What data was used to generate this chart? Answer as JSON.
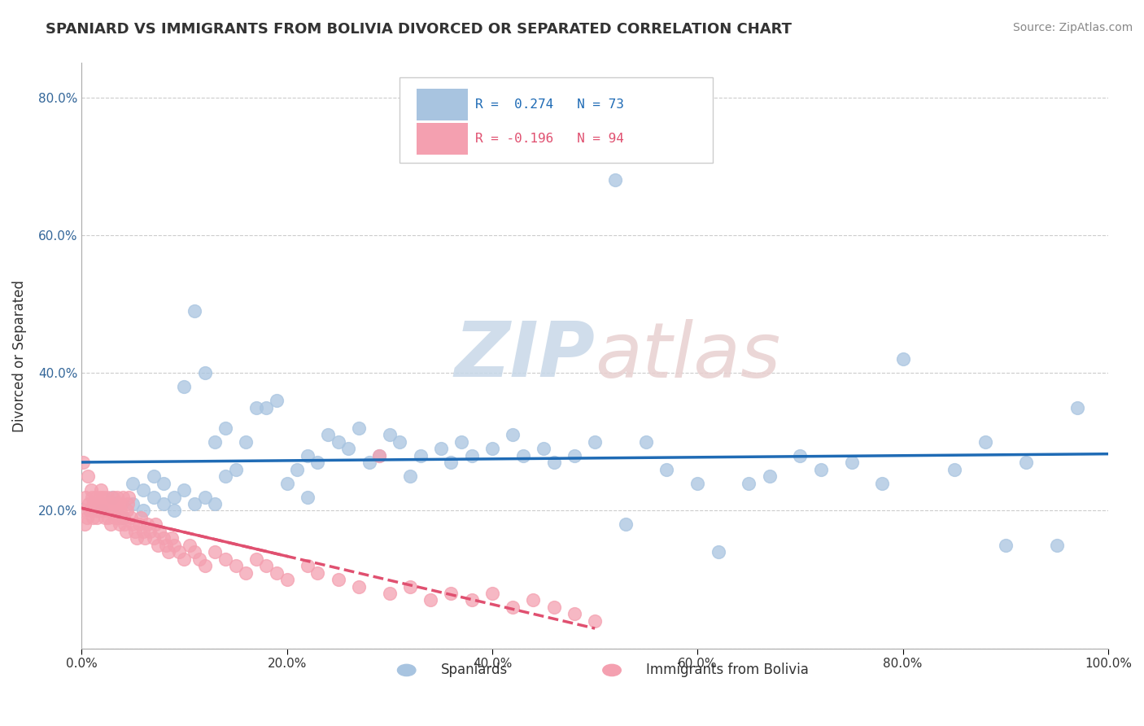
{
  "title": "SPANIARD VS IMMIGRANTS FROM BOLIVIA DIVORCED OR SEPARATED CORRELATION CHART",
  "source": "Source: ZipAtlas.com",
  "xlabel": "",
  "ylabel": "Divorced or Separated",
  "xlim": [
    0.0,
    1.0
  ],
  "ylim": [
    0.0,
    0.85
  ],
  "xticks": [
    0.0,
    0.2,
    0.4,
    0.6,
    0.8,
    1.0
  ],
  "xticklabels": [
    "0.0%",
    "20.0%",
    "40.0%",
    "60.0%",
    "80.0%",
    "100.0%"
  ],
  "yticks": [
    0.0,
    0.2,
    0.4,
    0.6,
    0.8
  ],
  "yticklabels": [
    "",
    "20.0%",
    "40.0%",
    "60.0%",
    "80.0%"
  ],
  "blue_color": "#a8c4e0",
  "pink_color": "#f4a0b0",
  "blue_line_color": "#1f6bb5",
  "pink_line_color": "#e05070",
  "blue_R": 0.274,
  "pink_R": -0.196,
  "blue_N": 73,
  "pink_N": 94,
  "blue_scatter_x": [
    0.02,
    0.03,
    0.04,
    0.05,
    0.05,
    0.06,
    0.06,
    0.07,
    0.07,
    0.08,
    0.08,
    0.09,
    0.09,
    0.1,
    0.1,
    0.11,
    0.11,
    0.12,
    0.12,
    0.13,
    0.13,
    0.14,
    0.14,
    0.15,
    0.16,
    0.17,
    0.18,
    0.19,
    0.2,
    0.21,
    0.22,
    0.22,
    0.23,
    0.24,
    0.25,
    0.26,
    0.27,
    0.28,
    0.29,
    0.3,
    0.31,
    0.32,
    0.33,
    0.35,
    0.36,
    0.37,
    0.38,
    0.4,
    0.42,
    0.43,
    0.45,
    0.46,
    0.48,
    0.5,
    0.52,
    0.53,
    0.55,
    0.57,
    0.6,
    0.62,
    0.65,
    0.67,
    0.7,
    0.72,
    0.75,
    0.78,
    0.8,
    0.85,
    0.88,
    0.9,
    0.92,
    0.95,
    0.97
  ],
  "blue_scatter_y": [
    0.2,
    0.22,
    0.19,
    0.24,
    0.21,
    0.23,
    0.2,
    0.25,
    0.22,
    0.21,
    0.24,
    0.22,
    0.2,
    0.23,
    0.38,
    0.49,
    0.21,
    0.22,
    0.4,
    0.3,
    0.21,
    0.25,
    0.32,
    0.26,
    0.3,
    0.35,
    0.35,
    0.36,
    0.24,
    0.26,
    0.28,
    0.22,
    0.27,
    0.31,
    0.3,
    0.29,
    0.32,
    0.27,
    0.28,
    0.31,
    0.3,
    0.25,
    0.28,
    0.29,
    0.27,
    0.3,
    0.28,
    0.29,
    0.31,
    0.28,
    0.29,
    0.27,
    0.28,
    0.3,
    0.68,
    0.18,
    0.3,
    0.26,
    0.24,
    0.14,
    0.24,
    0.25,
    0.28,
    0.26,
    0.27,
    0.24,
    0.42,
    0.26,
    0.3,
    0.15,
    0.27,
    0.15,
    0.35
  ],
  "pink_scatter_x": [
    0.001,
    0.002,
    0.003,
    0.004,
    0.005,
    0.006,
    0.007,
    0.008,
    0.009,
    0.01,
    0.011,
    0.012,
    0.013,
    0.014,
    0.015,
    0.016,
    0.017,
    0.018,
    0.019,
    0.02,
    0.021,
    0.022,
    0.023,
    0.024,
    0.025,
    0.026,
    0.027,
    0.028,
    0.03,
    0.031,
    0.032,
    0.033,
    0.034,
    0.035,
    0.036,
    0.037,
    0.038,
    0.039,
    0.04,
    0.041,
    0.042,
    0.043,
    0.044,
    0.045,
    0.046,
    0.048,
    0.05,
    0.052,
    0.054,
    0.056,
    0.058,
    0.06,
    0.062,
    0.064,
    0.066,
    0.07,
    0.072,
    0.074,
    0.076,
    0.08,
    0.082,
    0.085,
    0.088,
    0.09,
    0.095,
    0.1,
    0.105,
    0.11,
    0.115,
    0.12,
    0.13,
    0.14,
    0.15,
    0.16,
    0.17,
    0.18,
    0.19,
    0.2,
    0.22,
    0.23,
    0.25,
    0.27,
    0.29,
    0.3,
    0.32,
    0.34,
    0.36,
    0.38,
    0.4,
    0.42,
    0.44,
    0.46,
    0.48,
    0.5
  ],
  "pink_scatter_y": [
    0.27,
    0.2,
    0.18,
    0.22,
    0.19,
    0.25,
    0.21,
    0.2,
    0.23,
    0.22,
    0.19,
    0.21,
    0.2,
    0.22,
    0.19,
    0.2,
    0.21,
    0.22,
    0.23,
    0.21,
    0.22,
    0.2,
    0.19,
    0.21,
    0.22,
    0.19,
    0.2,
    0.18,
    0.21,
    0.22,
    0.19,
    0.2,
    0.21,
    0.22,
    0.19,
    0.18,
    0.2,
    0.21,
    0.22,
    0.19,
    0.18,
    0.17,
    0.2,
    0.21,
    0.22,
    0.19,
    0.18,
    0.17,
    0.16,
    0.18,
    0.19,
    0.17,
    0.16,
    0.18,
    0.17,
    0.16,
    0.18,
    0.15,
    0.17,
    0.16,
    0.15,
    0.14,
    0.16,
    0.15,
    0.14,
    0.13,
    0.15,
    0.14,
    0.13,
    0.12,
    0.14,
    0.13,
    0.12,
    0.11,
    0.13,
    0.12,
    0.11,
    0.1,
    0.12,
    0.11,
    0.1,
    0.09,
    0.28,
    0.08,
    0.09,
    0.07,
    0.08,
    0.07,
    0.08,
    0.06,
    0.07,
    0.06,
    0.05,
    0.04
  ]
}
